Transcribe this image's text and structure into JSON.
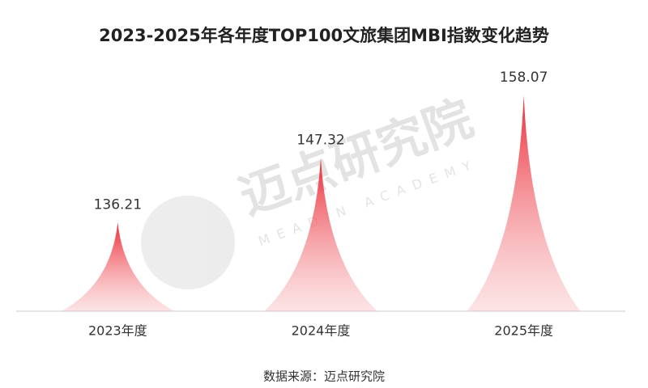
{
  "chart_data": {
    "type": "spike",
    "title": "2023-2025年各年度TOP100文旅集团MBI指数变化趋势",
    "categories": [
      "2023年度",
      "2024年度",
      "2025年度"
    ],
    "values": [
      136.21,
      147.32,
      158.07
    ],
    "color": "#ec2b36",
    "ylim": [
      121,
      160
    ]
  },
  "source": "数据来源：迈点研究院",
  "watermark": "迈点研究院",
  "watermark_sub": "MEADIN ACADEMY"
}
